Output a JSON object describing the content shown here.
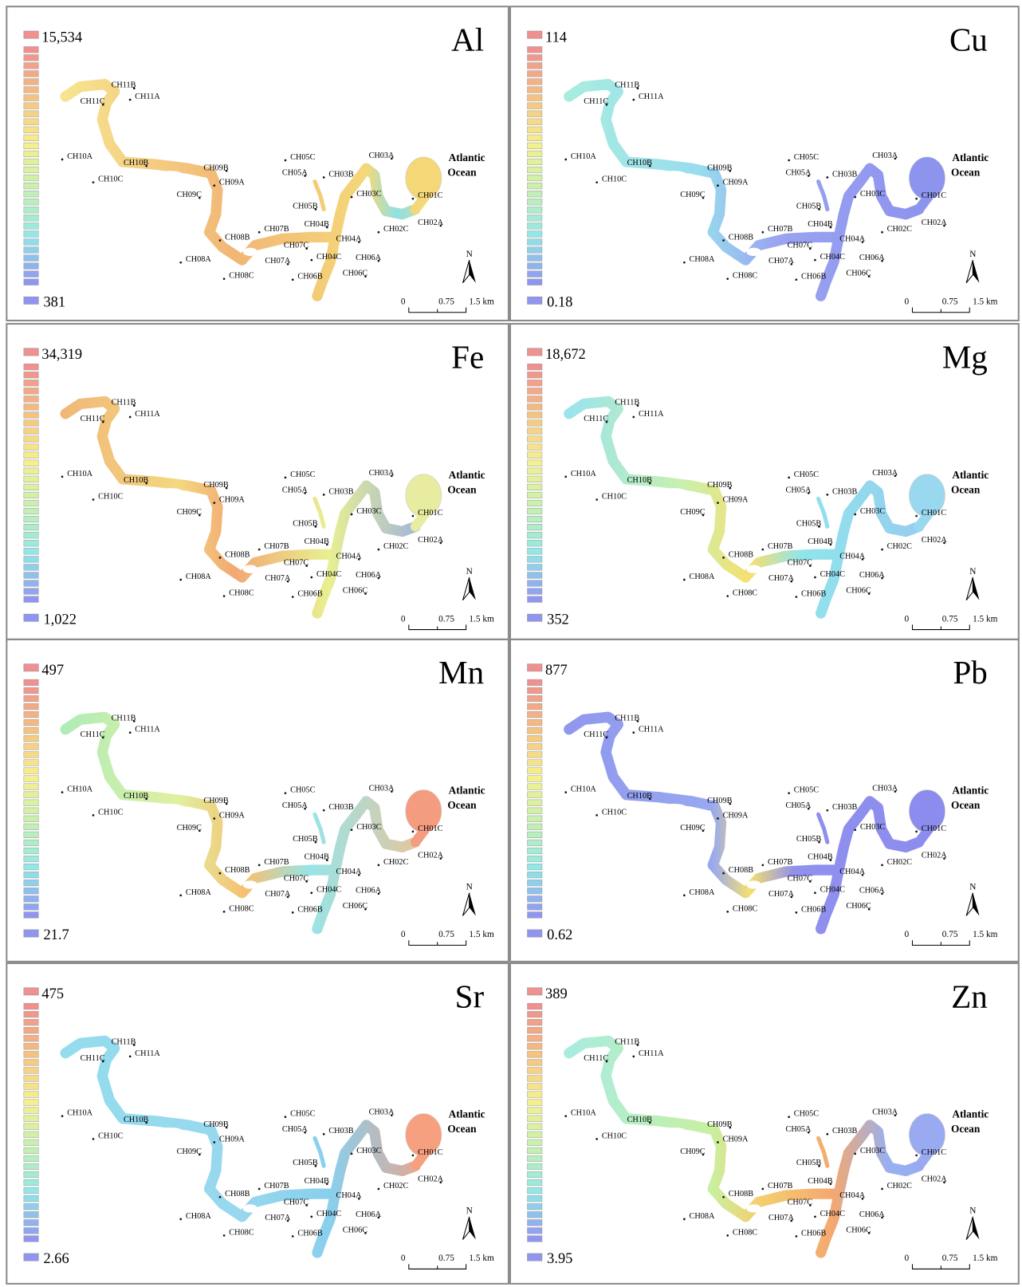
{
  "stations": [
    "CH11B",
    "CH11A",
    "CH11C",
    "CH10A",
    "CH10B",
    "CH10C",
    "CH09B",
    "CH09A",
    "CH09C",
    "CH05C",
    "CH05A",
    "CH03B",
    "CH03A",
    "CH03C",
    "CH05B",
    "CH01C",
    "CH02A",
    "CH02C",
    "CH04B",
    "CH07B",
    "CH04A",
    "CH08B",
    "CH07C",
    "CH04C",
    "CH06A",
    "CH08A",
    "CH07A",
    "CH06B",
    "CH06C",
    "CH08C"
  ],
  "ocean_label": [
    "Atlantic",
    "Ocean"
  ],
  "north": "N",
  "scale_labels": [
    "0",
    "0.75",
    "1.5 km"
  ],
  "panels": [
    {
      "element": "Al",
      "max": "15,534",
      "min": "381"
    },
    {
      "element": "Cu",
      "max": "114",
      "min": "0.18"
    },
    {
      "element": "Fe",
      "max": "34,319",
      "min": "1,022"
    },
    {
      "element": "Mg",
      "max": "18,672",
      "min": "352"
    },
    {
      "element": "Mn",
      "max": "497",
      "min": "21.7"
    },
    {
      "element": "Pb",
      "max": "877",
      "min": "0.62"
    },
    {
      "element": "Sr",
      "max": "475",
      "min": "2.66"
    },
    {
      "element": "Zn",
      "max": "389",
      "min": "3.95"
    }
  ]
}
